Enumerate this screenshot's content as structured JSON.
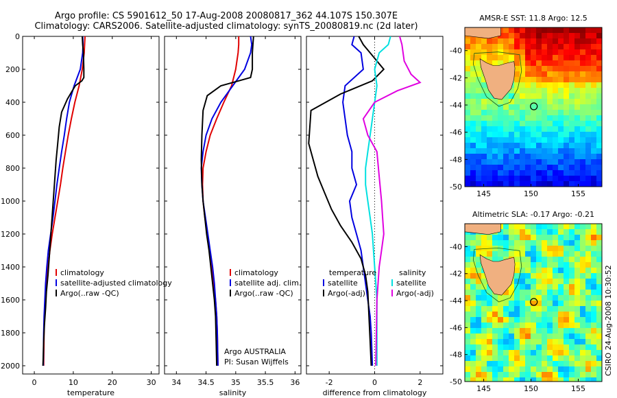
{
  "title": {
    "line1": "Argo profile: CS 5901612_50 17-Aug-2008 20080817_362 44.107S 150.307E",
    "line2": "Climatology: CARS2006. Satellite-adjusted climatology: synTS_20080819.nc (2d later)"
  },
  "colors": {
    "climatology": "#e00000",
    "satellite": "#0000e0",
    "argo": "#000000",
    "sat_salinity": "#00e0e0",
    "argo_adj_salinity": "#e000e0"
  },
  "chart_data": [
    {
      "type": "line",
      "xlabel": "temperature",
      "xlim": [
        -3,
        32
      ],
      "ylim": [
        2050,
        0
      ],
      "xticks": [
        0,
        10,
        20,
        30
      ],
      "yticks": [
        0,
        200,
        400,
        600,
        800,
        1000,
        1200,
        1400,
        1600,
        1800,
        2000
      ],
      "legend": {
        "position": "bottom-right",
        "entries": [
          "climatology",
          "satellite-adjusted climatology",
          "Argo(..raw -QC)"
        ]
      },
      "series": [
        {
          "name": "climatology",
          "color": "#e00000",
          "x": [
            13.0,
            12.9,
            12.8,
            12.3,
            11.5,
            10.4,
            9.5,
            8.7,
            8.0,
            7.3,
            6.7,
            6.0,
            5.3,
            4.6,
            4.0,
            3.5,
            3.1,
            2.8,
            2.6,
            2.5,
            2.4
          ],
          "y": [
            0,
            50,
            100,
            200,
            300,
            400,
            500,
            600,
            700,
            800,
            900,
            1000,
            1100,
            1200,
            1300,
            1400,
            1500,
            1600,
            1700,
            1800,
            2000
          ]
        },
        {
          "name": "satellite-adjusted climatology",
          "color": "#0000e0",
          "x": [
            12.4,
            12.5,
            12.4,
            11.8,
            10.2,
            9.0,
            8.3,
            7.7,
            7.0,
            6.4,
            5.8,
            5.3,
            4.8,
            4.2,
            3.6,
            3.2,
            2.9,
            2.7,
            2.5,
            2.4,
            2.3
          ],
          "y": [
            0,
            50,
            100,
            200,
            300,
            400,
            500,
            600,
            700,
            800,
            900,
            1000,
            1100,
            1200,
            1300,
            1400,
            1500,
            1600,
            1700,
            1800,
            2000
          ]
        },
        {
          "name": "Argo(..raw -QC)",
          "color": "#000000",
          "x": [
            12.3,
            12.4,
            12.6,
            12.7,
            12.7,
            12.2,
            10.5,
            8.5,
            7.0,
            6.4,
            6.0,
            5.6,
            5.3,
            5.0,
            4.7,
            4.4,
            4.1,
            3.8,
            3.5,
            3.1,
            2.9,
            2.6,
            2.4,
            2.3,
            2.2
          ],
          "y": [
            0,
            50,
            100,
            200,
            250,
            270,
            300,
            380,
            460,
            550,
            650,
            750,
            850,
            950,
            1050,
            1150,
            1250,
            1350,
            1450,
            1550,
            1650,
            1750,
            1850,
            1950,
            2000
          ]
        }
      ]
    },
    {
      "type": "line",
      "xlabel": "salinity",
      "xlim": [
        33.8,
        36.1
      ],
      "ylim": [
        2050,
        0
      ],
      "xticks": [
        34,
        34.5,
        35,
        35.5,
        36
      ],
      "xticklabels": [
        "34",
        "34.5",
        "35",
        "35.5",
        "36"
      ],
      "legend": {
        "position": "bottom-right",
        "entries": [
          "climatology",
          "satellite adj. clim.",
          "Argo(..raw -QC)"
        ]
      },
      "annotation": [
        "Argo AUSTRALIA",
        "PI: Susan Wijffels"
      ],
      "series": [
        {
          "name": "climatology",
          "color": "#e00000",
          "x": [
            35.05,
            35.05,
            35.04,
            35.0,
            34.93,
            34.8,
            34.68,
            34.57,
            34.5,
            34.45,
            34.44,
            34.45,
            34.48,
            34.52,
            34.56,
            34.6,
            34.63,
            34.66,
            34.68,
            34.69,
            34.7
          ],
          "y": [
            0,
            50,
            100,
            200,
            300,
            400,
            500,
            600,
            700,
            800,
            900,
            1000,
            1100,
            1200,
            1300,
            1400,
            1500,
            1600,
            1700,
            1800,
            2000
          ]
        },
        {
          "name": "satellite adj. clim.",
          "color": "#0000e0",
          "x": [
            35.25,
            35.27,
            35.25,
            35.15,
            34.95,
            34.75,
            34.6,
            34.5,
            34.45,
            34.42,
            34.43,
            34.45,
            34.49,
            34.53,
            34.57,
            34.61,
            34.64,
            34.66,
            34.68,
            34.69,
            34.7
          ],
          "y": [
            0,
            50,
            100,
            200,
            300,
            400,
            500,
            600,
            700,
            800,
            900,
            1000,
            1100,
            1200,
            1300,
            1400,
            1500,
            1600,
            1700,
            1800,
            2000
          ]
        },
        {
          "name": "Argo(..raw -QC)",
          "color": "#000000",
          "x": [
            35.3,
            35.29,
            35.28,
            35.28,
            35.25,
            35.05,
            34.75,
            34.52,
            34.45,
            34.43,
            34.42,
            34.43,
            34.45,
            34.48,
            34.51,
            34.55,
            34.58,
            34.61,
            34.64,
            34.66,
            34.67,
            34.68
          ],
          "y": [
            0,
            50,
            100,
            200,
            250,
            270,
            300,
            360,
            450,
            600,
            750,
            900,
            1000,
            1100,
            1200,
            1300,
            1400,
            1500,
            1600,
            1700,
            1850,
            2000
          ]
        }
      ]
    },
    {
      "type": "line",
      "xlabel": "difference from climatology",
      "xlim": [
        -3,
        3
      ],
      "ylim": [
        2050,
        0
      ],
      "xticks": [
        -2,
        0,
        2
      ],
      "reference_line": 0,
      "legend": {
        "position": "bottom-center",
        "columns": [
          {
            "header": "temperature",
            "entries": [
              "satellite",
              "Argo(-adj)"
            ]
          },
          {
            "header": "salinity",
            "entries": [
              "satellite",
              "Argo(-adj)"
            ]
          }
        ]
      },
      "series": [
        {
          "name": "satellite",
          "group": "temperature",
          "color": "#0000e0",
          "x": [
            -0.9,
            -1.0,
            -0.6,
            -0.5,
            -1.3,
            -1.4,
            -1.3,
            -1.2,
            -1.0,
            -1.0,
            -0.8,
            -1.1,
            -1.0,
            -0.8,
            -0.6,
            -0.5,
            -0.4,
            -0.3,
            -0.2,
            -0.15,
            -0.1
          ],
          "y": [
            0,
            50,
            100,
            200,
            300,
            400,
            500,
            600,
            700,
            800,
            900,
            1000,
            1100,
            1200,
            1300,
            1400,
            1500,
            1600,
            1700,
            1800,
            2000
          ]
        },
        {
          "name": "Argo(-adj)",
          "group": "temperature",
          "color": "#000000",
          "x": [
            -0.7,
            -0.5,
            -0.2,
            0.4,
            -0.1,
            -1.5,
            -2.8,
            -2.9,
            -2.7,
            -2.5,
            -2.2,
            -1.9,
            -1.5,
            -1.0,
            -0.6,
            -0.4,
            -0.3,
            -0.25,
            -0.2,
            -0.15
          ],
          "y": [
            0,
            50,
            100,
            200,
            270,
            350,
            450,
            650,
            750,
            850,
            950,
            1050,
            1150,
            1250,
            1350,
            1450,
            1550,
            1700,
            1850,
            2000
          ]
        },
        {
          "name": "satellite",
          "group": "salinity",
          "color": "#00e0e0",
          "x": [
            0.7,
            0.6,
            0.2,
            0.0,
            0.1,
            0.0,
            -0.1,
            -0.2,
            -0.3,
            -0.4,
            -0.4,
            -0.3,
            -0.2,
            -0.1,
            -0.05,
            0.0,
            0.05,
            0.1,
            0.1,
            0.1,
            0.1
          ],
          "y": [
            0,
            50,
            100,
            200,
            300,
            400,
            500,
            600,
            700,
            800,
            900,
            1000,
            1100,
            1200,
            1300,
            1400,
            1500,
            1600,
            1700,
            1800,
            2000
          ]
        },
        {
          "name": "Argo(-adj)",
          "group": "salinity",
          "color": "#e000e0",
          "x": [
            1.1,
            1.2,
            1.3,
            1.6,
            2.0,
            1.0,
            0.0,
            -0.5,
            -0.3,
            0.1,
            0.2,
            0.3,
            0.35,
            0.4,
            0.3,
            0.2,
            0.1,
            0.05
          ],
          "y": [
            0,
            50,
            150,
            230,
            280,
            330,
            400,
            500,
            600,
            700,
            850,
            1000,
            1100,
            1200,
            1300,
            1400,
            1600,
            2000
          ]
        }
      ]
    },
    {
      "type": "heatmap",
      "title": "AMSR-E SST: 11.8 Argo: 12.5",
      "xlim": [
        143,
        157.5
      ],
      "ylim": [
        -50,
        -38.3
      ],
      "xticks": [
        145,
        150,
        155
      ],
      "yticks": [
        -40,
        -42,
        -44,
        -46,
        -48,
        -50
      ],
      "marker": {
        "lon": 150.3,
        "lat": -44.1
      }
    },
    {
      "type": "heatmap",
      "title": "Altimetric SLA: -0.17 Argo: -0.21",
      "xlim": [
        143,
        157.5
      ],
      "ylim": [
        -50,
        -38.3
      ],
      "xticks": [
        145,
        150,
        155
      ],
      "yticks": [
        -40,
        -42,
        -44,
        -46,
        -48,
        -50
      ],
      "marker": {
        "lon": 150.3,
        "lat": -44.1
      }
    }
  ],
  "footer": "CSIRO 24-Aug-2008 10:30:52"
}
